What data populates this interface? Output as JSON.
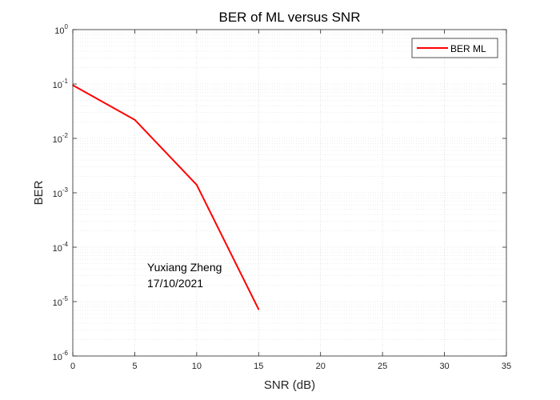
{
  "chart_data": {
    "type": "line",
    "title": "BER of ML versus SNR",
    "xlabel": "SNR (dB)",
    "ylabel": "BER",
    "xlim": [
      0,
      35
    ],
    "ylim": [
      1e-06,
      1
    ],
    "yscale": "log",
    "grid": true,
    "minor_grid": true,
    "legend_position": "top-right",
    "x_ticks": [
      0,
      5,
      10,
      15,
      20,
      25,
      30,
      35
    ],
    "x_tick_labels": [
      "0",
      "5",
      "10",
      "15",
      "20",
      "25",
      "30",
      "35"
    ],
    "y_tick_exponents": [
      0,
      -1,
      -2,
      -3,
      -4,
      -5,
      -6
    ],
    "series": [
      {
        "name": "BER ML",
        "color": "#ff0000",
        "x": [
          0,
          5,
          10,
          15
        ],
        "y": [
          0.095,
          0.022,
          0.0014,
          7.2e-06
        ]
      }
    ],
    "annotations": [
      "Yuxiang Zheng",
      "17/10/2021"
    ]
  }
}
